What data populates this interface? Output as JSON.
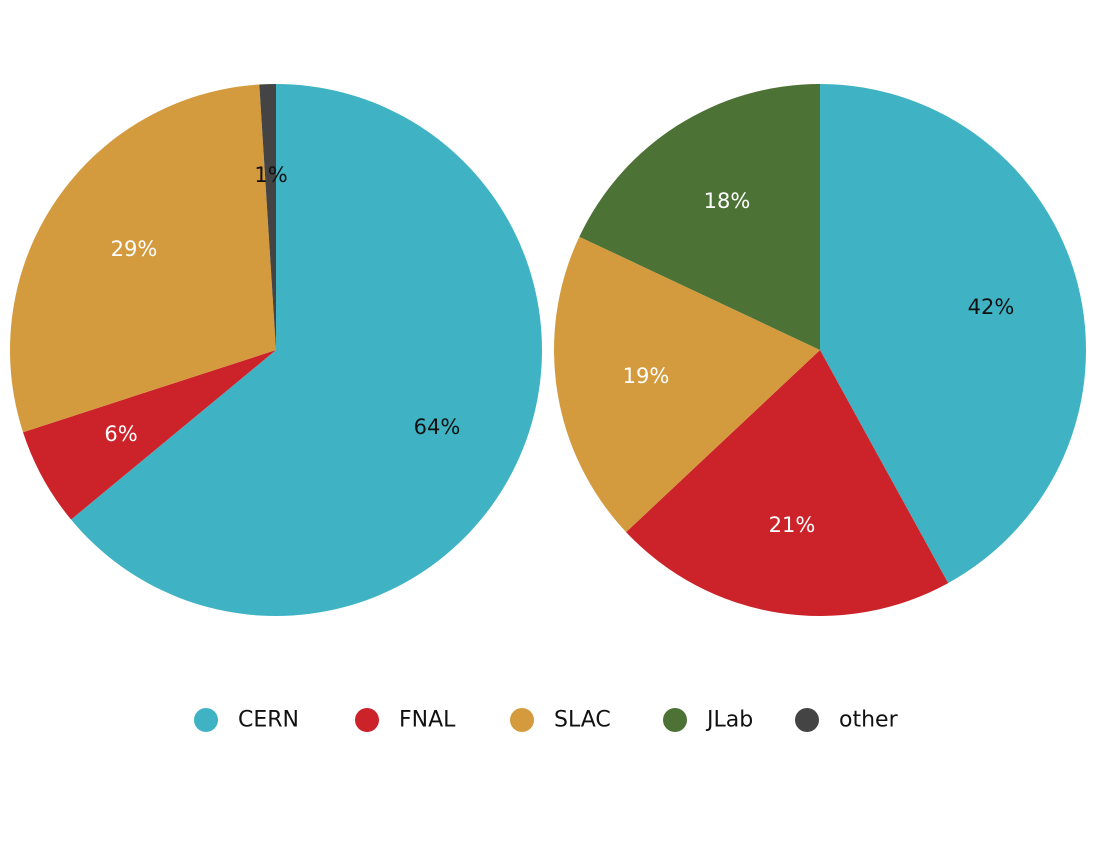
{
  "chart_data": [
    {
      "type": "pie",
      "categories": [
        "CERN",
        "FNAL",
        "SLAC",
        "other"
      ],
      "values": [
        64,
        6,
        29,
        1
      ],
      "value_labels": [
        "64%",
        "6%",
        "29%",
        "1%"
      ],
      "label_colors": [
        "#111111",
        "#ffffff",
        "#ffffff",
        "#111111"
      ]
    },
    {
      "type": "pie",
      "categories": [
        "CERN",
        "FNAL",
        "SLAC",
        "JLab"
      ],
      "values": [
        42,
        21,
        19,
        18
      ],
      "value_labels": [
        "42%",
        "21%",
        "19%",
        "18%"
      ],
      "label_colors": [
        "#111111",
        "#ffffff",
        "#ffffff",
        "#ffffff"
      ]
    }
  ],
  "legend": {
    "placement": "bottom-center",
    "items": [
      {
        "label": "CERN",
        "color": "#3fb3c4"
      },
      {
        "label": "FNAL",
        "color": "#cc2229"
      },
      {
        "label": "SLAC",
        "color": "#d49b3e"
      },
      {
        "label": "JLab",
        "color": "#4d7235"
      },
      {
        "label": "other",
        "color": "#444444"
      }
    ]
  }
}
